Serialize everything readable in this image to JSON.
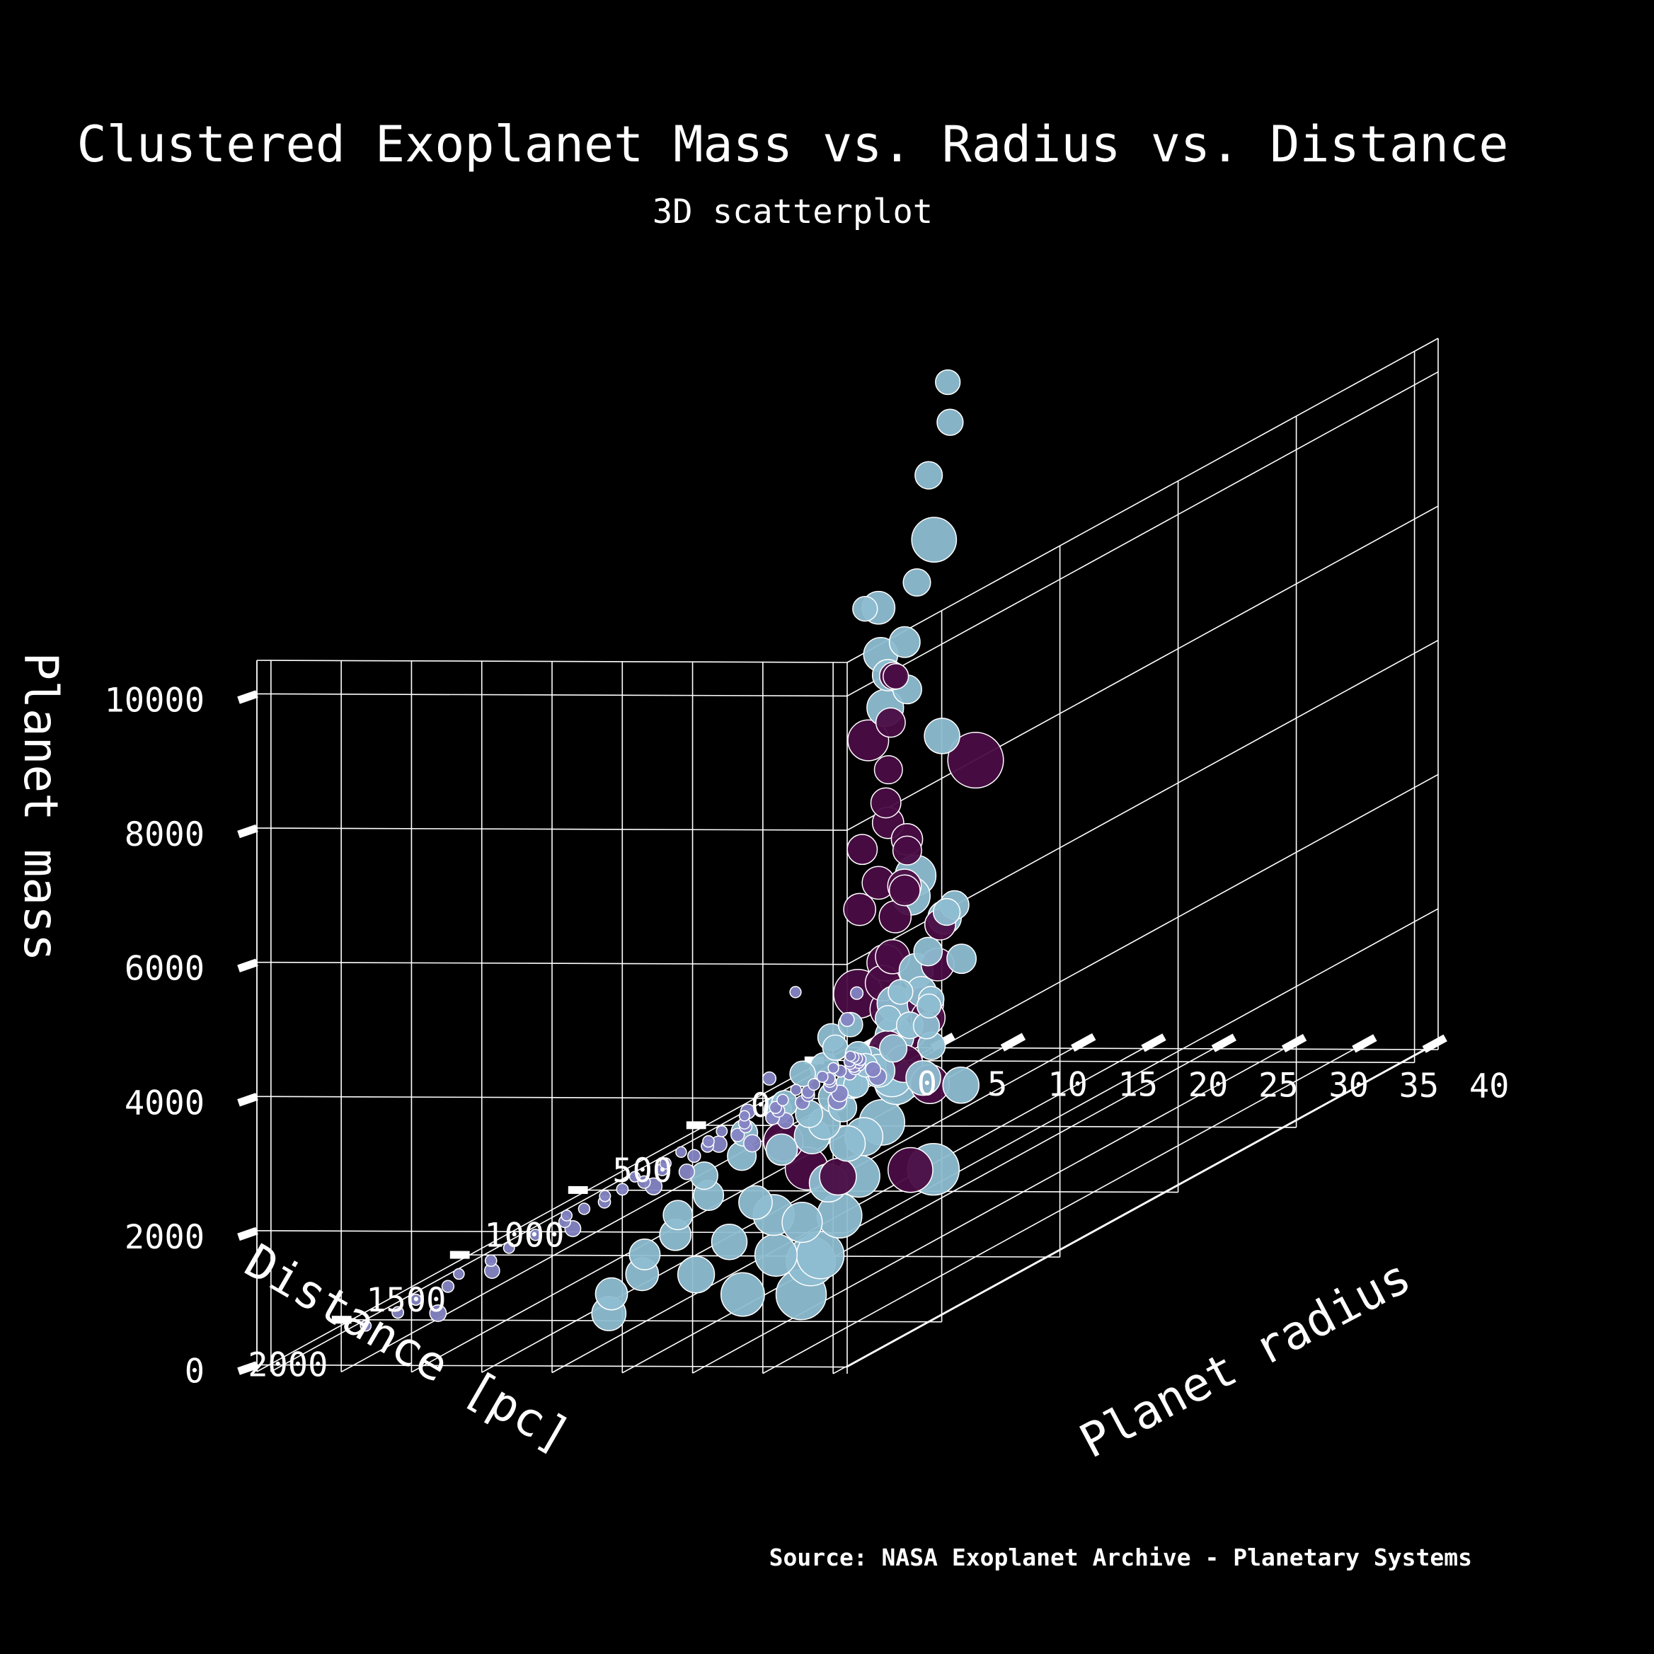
{
  "chart_data": {
    "type": "scatter",
    "title": "Clustered Exoplanet Mass vs. Radius vs. Distance",
    "subtitle": "3D scatterplot",
    "xlabel": "Distance [pc]",
    "ylabel": "Planet radius",
    "zlabel": "Planet mass",
    "source": "Source: NASA Exoplanet Archive - Planetary Systems",
    "x_ticks": [
      "0",
      "500",
      "1000",
      "1500",
      "2000"
    ],
    "x_tick_values": [
      0,
      500,
      1000,
      1500,
      2000
    ],
    "y_ticks": [
      "0",
      "5",
      "10",
      "15",
      "20",
      "25",
      "30",
      "35",
      "40"
    ],
    "y_tick_values": [
      0,
      5,
      10,
      15,
      20,
      25,
      30,
      35,
      40
    ],
    "z_ticks": [
      "0",
      "2000",
      "4000",
      "6000",
      "8000",
      "10000"
    ],
    "z_tick_values": [
      0,
      2000,
      4000,
      6000,
      8000,
      10000
    ],
    "xlim": [
      -100,
      2400
    ],
    "ylim": [
      -1,
      41
    ],
    "zlim": [
      -100,
      10500
    ],
    "grid": true,
    "legend": "none",
    "colors": {
      "background": "#000000",
      "axes": "#ffffff",
      "text": "#ffffff",
      "cluster_small": "#8585c4",
      "cluster_large": "#8ebdd1",
      "cluster_massive": "#4a0c44",
      "marker_edge": "#ffffff"
    },
    "series": [
      {
        "cluster": 0,
        "color": "#8585c4",
        "points": [
          [
            20,
            1.2,
            5
          ],
          [
            30,
            1.6,
            8
          ],
          [
            40,
            2.0,
            6
          ],
          [
            50,
            2.4,
            12
          ],
          [
            60,
            1.8,
            4
          ],
          [
            70,
            2.6,
            10
          ],
          [
            80,
            2.2,
            9
          ],
          [
            90,
            3.0,
            15
          ],
          [
            100,
            2.8,
            11
          ],
          [
            110,
            1.5,
            3
          ],
          [
            120,
            3.2,
            18
          ],
          [
            140,
            2.5,
            14
          ],
          [
            160,
            3.5,
            20
          ],
          [
            180,
            1.9,
            7
          ],
          [
            200,
            2.7,
            16
          ],
          [
            220,
            3.1,
            22
          ],
          [
            240,
            2.3,
            9
          ],
          [
            260,
            3.8,
            25
          ],
          [
            280,
            1.7,
            5
          ],
          [
            300,
            2.9,
            17
          ],
          [
            330,
            3.4,
            28
          ],
          [
            360,
            2.1,
            8
          ],
          [
            390,
            4.0,
            30
          ],
          [
            420,
            2.6,
            13
          ],
          [
            450,
            3.3,
            24
          ],
          [
            480,
            1.4,
            4
          ],
          [
            510,
            3.9,
            35
          ],
          [
            540,
            2.4,
            12
          ],
          [
            570,
            3.0,
            20
          ],
          [
            600,
            1.8,
            6
          ],
          [
            640,
            3.6,
            30
          ],
          [
            680,
            2.2,
            10
          ],
          [
            720,
            2.8,
            18
          ],
          [
            760,
            1.6,
            5
          ],
          [
            800,
            3.2,
            25
          ],
          [
            850,
            2.0,
            9
          ],
          [
            900,
            2.6,
            14
          ],
          [
            950,
            1.5,
            4
          ],
          [
            1000,
            3.0,
            22
          ],
          [
            1050,
            2.3,
            11
          ],
          [
            1100,
            1.9,
            7
          ],
          [
            1150,
            2.7,
            16
          ],
          [
            1200,
            2.1,
            9
          ],
          [
            1250,
            1.7,
            6
          ],
          [
            1300,
            2.4,
            12
          ],
          [
            1400,
            2.0,
            8
          ],
          [
            1500,
            1.8,
            7
          ],
          [
            1600,
            2.2,
            10
          ],
          [
            1700,
            1.6,
            5
          ],
          [
            1800,
            2.5,
            13
          ],
          [
            1900,
            1.9,
            8
          ],
          [
            2000,
            2.3,
            11
          ],
          [
            2100,
            1.7,
            6
          ],
          [
            150,
            5.0,
            60
          ],
          [
            350,
            6.0,
            90
          ],
          [
            550,
            5.5,
            70
          ],
          [
            750,
            6.5,
            120
          ],
          [
            950,
            5.2,
            80
          ],
          [
            250,
            7.0,
            150
          ],
          [
            450,
            7.5,
            180
          ],
          [
            300,
            2.0,
            1500
          ],
          [
            100,
            3.0,
            1100
          ],
          [
            200,
            4.0,
            900
          ],
          [
            500,
            3.5,
            600
          ],
          [
            650,
            4.5,
            400
          ],
          [
            850,
            5.8,
            300
          ],
          [
            1150,
            6.2,
            250
          ],
          [
            1450,
            5.5,
            200
          ],
          [
            1750,
            4.8,
            150
          ],
          [
            2050,
            6.0,
            100
          ]
        ]
      },
      {
        "cluster": 1,
        "color": "#8ebdd1",
        "points": [
          [
            300,
            11.5,
            1300
          ],
          [
            350,
            12.5,
            1500
          ],
          [
            400,
            13.0,
            1200
          ],
          [
            450,
            12.0,
            1800
          ],
          [
            500,
            13.5,
            1400
          ],
          [
            550,
            12.8,
            1600
          ],
          [
            600,
            14.0,
            1250
          ],
          [
            650,
            11.8,
            1700
          ],
          [
            700,
            13.2,
            1350
          ],
          [
            750,
            12.4,
            1550
          ],
          [
            800,
            14.5,
            1100
          ],
          [
            850,
            13.8,
            1900
          ],
          [
            900,
            12.6,
            1450
          ],
          [
            950,
            15.0,
            1650
          ],
          [
            1000,
            13.0,
            1200
          ],
          [
            400,
            15.5,
            2200
          ],
          [
            500,
            14.8,
            2500
          ],
          [
            600,
            16.0,
            2100
          ],
          [
            350,
            13.6,
            2800
          ],
          [
            450,
            14.2,
            1000
          ],
          [
            550,
            11.2,
            900
          ],
          [
            650,
            12.2,
            800
          ],
          [
            750,
            13.4,
            1000
          ],
          [
            850,
            14.6,
            850
          ],
          [
            950,
            13.9,
            950
          ],
          [
            1100,
            14.2,
            1300
          ],
          [
            1200,
            13.5,
            1150
          ],
          [
            1300,
            15.0,
            1000
          ],
          [
            1400,
            14.0,
            900
          ],
          [
            1500,
            16.0,
            800
          ],
          [
            1600,
            15.5,
            700
          ],
          [
            1700,
            17.0,
            600
          ],
          [
            1800,
            16.5,
            500
          ],
          [
            1900,
            18.0,
            400
          ],
          [
            2000,
            17.5,
            300
          ],
          [
            2100,
            19.0,
            200
          ],
          [
            1250,
            17.0,
            1000
          ],
          [
            1450,
            18.5,
            600
          ],
          [
            1650,
            20.0,
            400
          ],
          [
            1850,
            21.0,
            300
          ],
          [
            1350,
            22.0,
            700
          ],
          [
            1550,
            23.5,
            500
          ],
          [
            1750,
            25.0,
            400
          ],
          [
            1950,
            26.0,
            200
          ],
          [
            1150,
            20.0,
            900
          ],
          [
            900,
            18.0,
            1500
          ],
          [
            1000,
            16.5,
            1300
          ],
          [
            1100,
            17.5,
            1100
          ],
          [
            800,
            19.5,
            1200
          ],
          [
            700,
            20.5,
            900
          ],
          [
            1300,
            20.0,
            1300
          ],
          [
            1000,
            19.0,
            1800
          ],
          [
            1200,
            22.0,
            1100
          ],
          [
            1400,
            25.0,
            900
          ],
          [
            1600,
            27.0,
            700
          ],
          [
            1800,
            29.0,
            500
          ],
          [
            2000,
            31.0,
            300
          ],
          [
            1700,
            24.0,
            900
          ],
          [
            1900,
            30.0,
            600
          ],
          [
            1500,
            32.0,
            1200
          ],
          [
            250,
            12.0,
            10500
          ],
          [
            300,
            13.0,
            10000
          ],
          [
            450,
            14.0,
            9500
          ],
          [
            600,
            12.0,
            7800
          ],
          [
            500,
            14.0,
            8000
          ],
          [
            700,
            16.5,
            7500
          ],
          [
            800,
            17.0,
            7200
          ],
          [
            900,
            18.0,
            8400
          ],
          [
            950,
            19.0,
            7800
          ],
          [
            1050,
            21.0,
            7200
          ],
          [
            600,
            15.0,
            6600
          ],
          [
            1200,
            27.0,
            10000
          ],
          [
            1100,
            24.0,
            4800
          ],
          [
            1000,
            22.0,
            4300
          ],
          [
            750,
            20.0,
            6200
          ],
          [
            400,
            15.0,
            3000
          ],
          [
            650,
            18.5,
            3300
          ],
          [
            800,
            19.0,
            2800
          ],
          [
            950,
            20.0,
            2600
          ],
          [
            1100,
            22.5,
            2400
          ],
          [
            1200,
            24.0,
            2000
          ],
          [
            1300,
            26.0,
            2100
          ],
          [
            1450,
            27.5,
            1800
          ]
        ]
      },
      {
        "cluster": 2,
        "color": "#4a0c44",
        "points": [
          [
            500,
            12.5,
            6600
          ],
          [
            600,
            14.0,
            6800
          ],
          [
            700,
            15.5,
            6300
          ],
          [
            650,
            14.5,
            5500
          ],
          [
            750,
            16.0,
            5200
          ],
          [
            800,
            17.0,
            5000
          ],
          [
            850,
            16.0,
            4700
          ],
          [
            900,
            18.0,
            4300
          ],
          [
            950,
            17.5,
            4000
          ],
          [
            600,
            15.0,
            4200
          ],
          [
            700,
            16.5,
            3800
          ],
          [
            800,
            17.5,
            3600
          ],
          [
            900,
            19.0,
            3200
          ],
          [
            1000,
            20.0,
            3000
          ],
          [
            1050,
            21.0,
            3400
          ],
          [
            1150,
            23.0,
            2900
          ],
          [
            1200,
            25.0,
            2700
          ],
          [
            1100,
            22.0,
            2200
          ],
          [
            1000,
            21.5,
            1800
          ],
          [
            950,
            22.5,
            1400
          ],
          [
            1300,
            24.0,
            7200
          ],
          [
            1500,
            35.0,
            7300
          ],
          [
            1700,
            30.0,
            4200
          ],
          [
            1600,
            23.0,
            1800
          ],
          [
            1650,
            25.5,
            1500
          ],
          [
            1300,
            27.0,
            800
          ],
          [
            1250,
            21.0,
            600
          ],
          [
            850,
            20.5,
            2400
          ],
          [
            750,
            19.0,
            2000
          ],
          [
            650,
            18.0,
            2600
          ],
          [
            550,
            16.5,
            3000
          ],
          [
            720,
            17.0,
            4600
          ],
          [
            820,
            18.5,
            4100
          ]
        ]
      }
    ]
  }
}
